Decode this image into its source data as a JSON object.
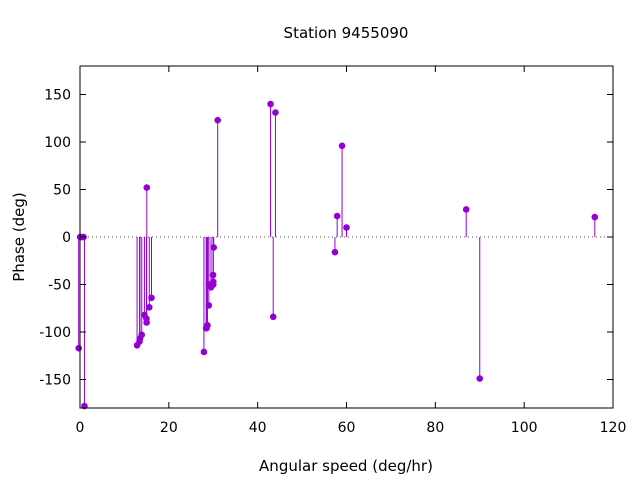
{
  "chart_data": {
    "type": "scatter",
    "style": "impulses-with-points",
    "title": "Station 9455090",
    "xlabel": "Angular speed (deg/hr)",
    "ylabel": "Phase (deg)",
    "xlim": [
      0,
      120
    ],
    "ylim": [
      -180,
      180
    ],
    "xticks": [
      0,
      20,
      40,
      60,
      80,
      100,
      120
    ],
    "yticks": [
      -150,
      -100,
      -50,
      0,
      50,
      100,
      150
    ],
    "grid": false,
    "zero_line": true,
    "color": "#9400d3",
    "series": [
      {
        "points": [
          [
            0.04,
            0.0
          ],
          [
            0.08,
            0.0
          ],
          [
            0.5,
            0.0
          ],
          [
            0.8,
            0.0
          ],
          [
            -0.3,
            -117
          ],
          [
            1.0,
            -178
          ],
          [
            12.85,
            -114
          ],
          [
            13.4,
            -110
          ],
          [
            13.5,
            -107
          ],
          [
            13.9,
            -103
          ],
          [
            14.5,
            -82
          ],
          [
            14.96,
            -86
          ],
          [
            15.0,
            -90
          ],
          [
            15.04,
            52
          ],
          [
            15.6,
            -74
          ],
          [
            16.1,
            -64
          ],
          [
            27.9,
            -121
          ],
          [
            28.4,
            -96
          ],
          [
            28.5,
            -96
          ],
          [
            28.7,
            -93
          ],
          [
            29.0,
            -72
          ],
          [
            29.0,
            -50
          ],
          [
            29.5,
            -53
          ],
          [
            29.96,
            -40
          ],
          [
            30.0,
            -47
          ],
          [
            30.0,
            -50
          ],
          [
            30.1,
            -11
          ],
          [
            31.0,
            123
          ],
          [
            42.9,
            140
          ],
          [
            43.5,
            -84
          ],
          [
            44.0,
            131
          ],
          [
            57.4,
            -16
          ],
          [
            57.9,
            22
          ],
          [
            59.0,
            96
          ],
          [
            60.0,
            10
          ],
          [
            86.95,
            29
          ],
          [
            90.0,
            -149
          ],
          [
            115.9,
            21
          ]
        ]
      }
    ]
  }
}
